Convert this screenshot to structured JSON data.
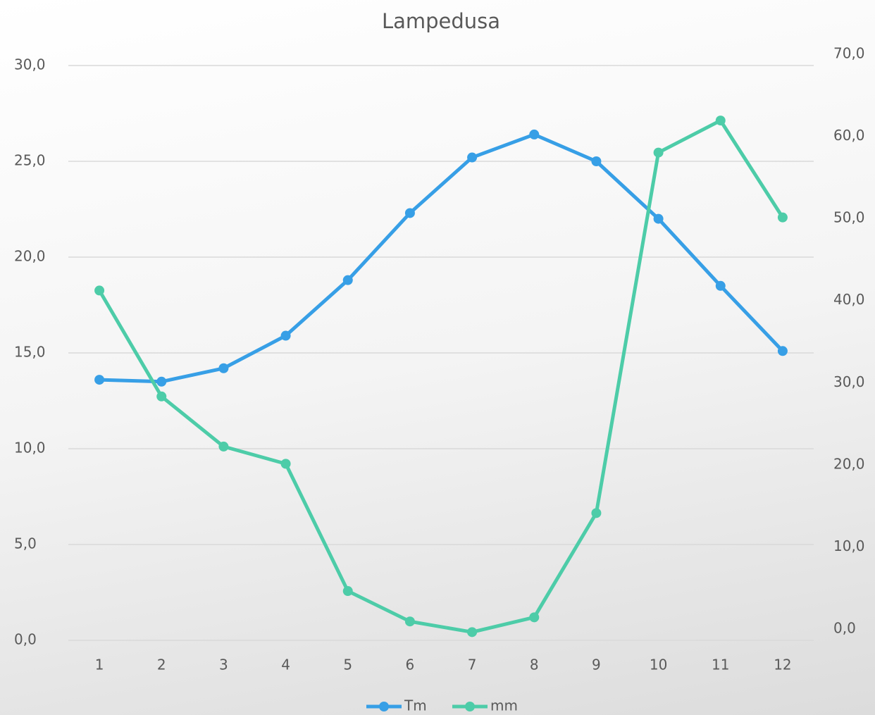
{
  "chart_data": {
    "type": "line",
    "title": "Lampedusa",
    "categories": [
      "1",
      "2",
      "3",
      "4",
      "5",
      "6",
      "7",
      "8",
      "9",
      "10",
      "11",
      "12"
    ],
    "series": [
      {
        "name": "Tm",
        "color": "#379fe6",
        "values": [
          13.6,
          13.5,
          14.2,
          15.9,
          18.8,
          22.3,
          25.2,
          26.4,
          25.0,
          22.0,
          18.5,
          15.1
        ]
      },
      {
        "name": "mm",
        "color": "#4dcca8",
        "axis": "y2",
        "values": [
          42.6,
          29.7,
          23.6,
          21.5,
          6.0,
          2.3,
          1.0,
          2.8,
          15.5,
          59.4,
          63.3,
          51.5
        ]
      }
    ],
    "ylim": [
      0,
      30
    ],
    "yticks": [
      {
        "value": 0,
        "label": "0,0"
      },
      {
        "value": 5,
        "label": "5,0"
      },
      {
        "value": 10,
        "label": "10,0"
      },
      {
        "value": 15,
        "label": "15,0"
      },
      {
        "value": 20,
        "label": "20,0"
      },
      {
        "value": 25,
        "label": "25,0"
      },
      {
        "value": 30,
        "label": "30,0"
      }
    ],
    "y2lim": [
      0,
      70
    ],
    "y2ticks": [
      {
        "value": 0,
        "label": "0,0"
      },
      {
        "value": 10,
        "label": "10,0"
      },
      {
        "value": 20,
        "label": "20,0"
      },
      {
        "value": 30,
        "label": "30,0"
      },
      {
        "value": 40,
        "label": "40,0"
      },
      {
        "value": 50,
        "label": "50,0"
      },
      {
        "value": 60,
        "label": "60,0"
      },
      {
        "value": 70,
        "label": "70,0"
      }
    ],
    "grid": true,
    "legend": "bottom"
  }
}
